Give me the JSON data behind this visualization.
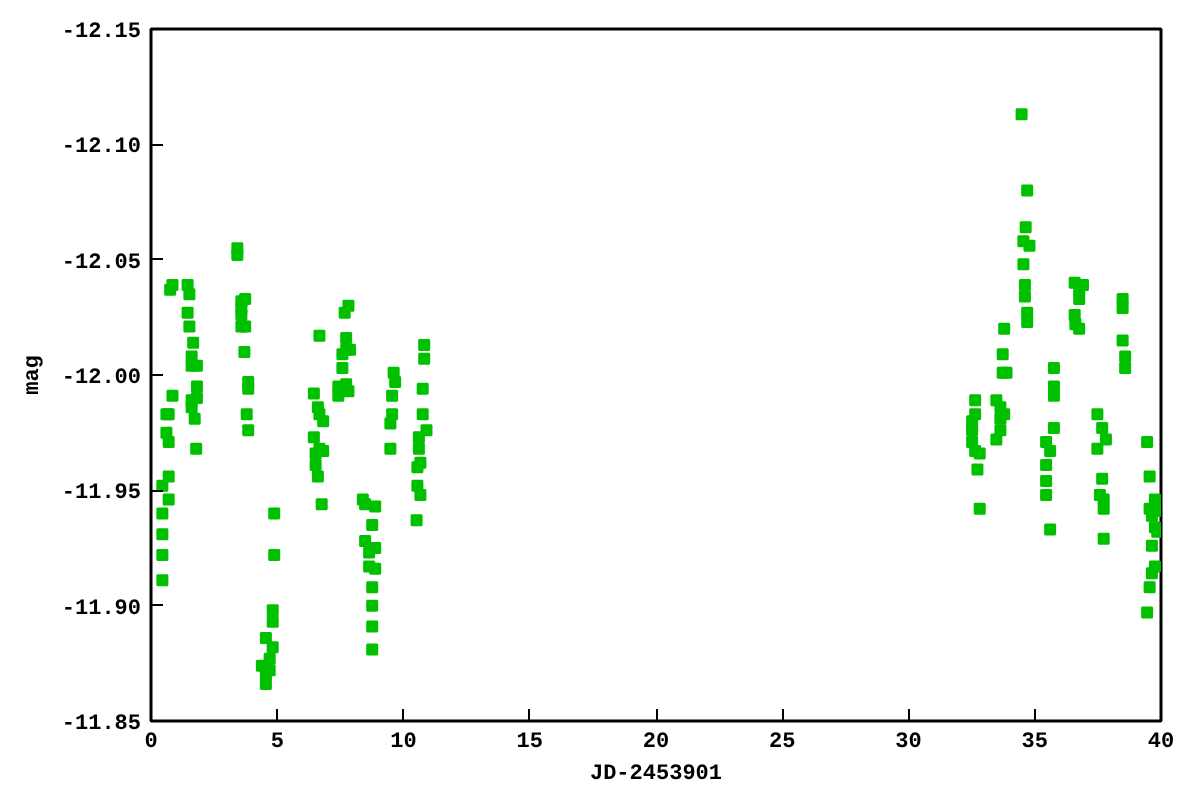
{
  "chart_data": {
    "type": "scatter",
    "xlabel": "JD-2453901",
    "ylabel": "mag",
    "marker": "square",
    "grid": false,
    "xlim": [
      0,
      40
    ],
    "ylim": [
      -11.85,
      -12.15
    ],
    "xticks": [
      0,
      5,
      10,
      15,
      20,
      25,
      30,
      35,
      40
    ],
    "yticks": [
      {
        "value": -12.15,
        "label": "-12.15"
      },
      {
        "value": -12.1,
        "label": "-12.10"
      },
      {
        "value": -12.05,
        "label": "-12.05"
      },
      {
        "value": -12.0,
        "label": "-12.00"
      },
      {
        "value": -11.95,
        "label": "-11.95"
      },
      {
        "value": -11.9,
        "label": "-11.90"
      },
      {
        "value": -11.85,
        "label": "-11.85"
      }
    ],
    "series": [
      {
        "color": "#00c000",
        "x": [
          0.45,
          0.45,
          0.45,
          0.45,
          0.45,
          0.61,
          0.61,
          0.7,
          0.7,
          0.7,
          0.7,
          0.76,
          0.85,
          0.85,
          1.45,
          1.45,
          1.52,
          1.52,
          1.67,
          1.61,
          1.61,
          1.82,
          1.61,
          1.61,
          1.73,
          1.82,
          1.82,
          1.79,
          3.42,
          3.42,
          3.58,
          3.58,
          3.58,
          3.58,
          3.73,
          3.73,
          3.7,
          3.85,
          3.85,
          3.79,
          3.85,
          4.39,
          4.55,
          4.55,
          4.55,
          4.7,
          4.7,
          4.82,
          4.82,
          4.82,
          4.88,
          4.88,
          6.45,
          6.45,
          6.52,
          6.52,
          6.61,
          6.61,
          6.67,
          6.67,
          6.67,
          6.76,
          6.82,
          6.82,
          7.42,
          7.42,
          7.58,
          7.58,
          7.67,
          7.73,
          7.73,
          7.73,
          7.82,
          7.82,
          7.88,
          8.39,
          8.48,
          8.48,
          8.64,
          8.64,
          8.76,
          8.76,
          8.76,
          8.76,
          8.76,
          8.88,
          8.88,
          8.88,
          9.48,
          9.48,
          9.55,
          9.55,
          9.61,
          9.67,
          10.52,
          10.55,
          10.55,
          10.61,
          10.61,
          10.67,
          10.67,
          10.76,
          10.76,
          10.82,
          10.82,
          10.91,
          32.52,
          32.52,
          32.52,
          32.64,
          32.64,
          32.64,
          32.73,
          32.82,
          32.82,
          33.48,
          33.48,
          33.64,
          33.64,
          33.64,
          33.73,
          33.73,
          33.79,
          33.79,
          33.88,
          34.48,
          34.7,
          34.64,
          34.55,
          34.55,
          34.79,
          34.61,
          34.61,
          34.7,
          34.7,
          35.45,
          35.45,
          35.45,
          35.45,
          35.61,
          35.61,
          35.76,
          35.76,
          35.76,
          35.76,
          36.58,
          36.58,
          36.76,
          36.76,
          36.76,
          36.91,
          36.61,
          37.48,
          37.48,
          37.58,
          37.67,
          37.67,
          37.73,
          37.73,
          37.73,
          37.82,
          38.48,
          38.48,
          38.48,
          38.58,
          38.58,
          39.45,
          39.45,
          39.55,
          39.55,
          39.55,
          39.64,
          39.64,
          39.64,
          39.76,
          39.76,
          39.76,
          39.85,
          39.85
        ],
        "values": [
          -11.911,
          -11.922,
          -11.931,
          -11.94,
          -11.952,
          -11.983,
          -11.975,
          -11.971,
          -11.956,
          -11.946,
          -11.983,
          -12.037,
          -12.039,
          -11.991,
          -12.039,
          -12.027,
          -12.035,
          -12.021,
          -12.014,
          -12.008,
          -12.004,
          -12.004,
          -11.989,
          -11.986,
          -11.981,
          -11.995,
          -11.99,
          -11.968,
          -12.055,
          -12.052,
          -12.032,
          -12.029,
          -12.026,
          -12.021,
          -12.033,
          -12.021,
          -12.01,
          -11.997,
          -11.994,
          -11.983,
          -11.976,
          -11.874,
          -11.886,
          -11.87,
          -11.866,
          -11.877,
          -11.872,
          -11.882,
          -11.893,
          -11.898,
          -11.922,
          -11.94,
          -11.992,
          -11.973,
          -11.966,
          -11.961,
          -11.986,
          -11.956,
          -12.017,
          -11.983,
          -11.968,
          -11.944,
          -11.98,
          -11.967,
          -11.995,
          -11.991,
          -12.003,
          -12.009,
          -12.027,
          -12.016,
          -11.996,
          -12.011,
          -12.03,
          -11.993,
          -12.011,
          -11.946,
          -11.944,
          -11.928,
          -11.923,
          -11.917,
          -11.935,
          -11.908,
          -11.9,
          -11.891,
          -11.881,
          -11.943,
          -11.925,
          -11.916,
          -11.968,
          -11.979,
          -11.983,
          -11.991,
          -12.001,
          -11.997,
          -11.937,
          -11.96,
          -11.952,
          -11.973,
          -11.968,
          -11.948,
          -11.962,
          -11.994,
          -11.983,
          -12.013,
          -12.007,
          -11.976,
          -11.98,
          -11.976,
          -11.971,
          -11.989,
          -11.983,
          -11.967,
          -11.959,
          -11.966,
          -11.942,
          -11.989,
          -11.972,
          -11.986,
          -11.981,
          -11.976,
          -12.009,
          -12.001,
          -12.02,
          -11.983,
          -12.001,
          -12.113,
          -12.08,
          -12.064,
          -12.058,
          -12.048,
          -12.056,
          -12.039,
          -12.034,
          -12.027,
          -12.023,
          -11.971,
          -11.961,
          -11.954,
          -11.948,
          -11.967,
          -11.933,
          -11.995,
          -11.991,
          -12.003,
          -11.977,
          -12.04,
          -12.026,
          -12.037,
          -12.033,
          -12.02,
          -12.039,
          -12.022,
          -11.983,
          -11.968,
          -11.948,
          -11.977,
          -11.955,
          -11.946,
          -11.942,
          -11.929,
          -11.972,
          -12.033,
          -12.029,
          -12.015,
          -12.008,
          -12.003,
          -11.971,
          -11.897,
          -11.956,
          -11.942,
          -11.908,
          -11.939,
          -11.926,
          -11.914,
          -11.946,
          -11.934,
          -11.917,
          -11.941,
          -11.932
        ]
      }
    ]
  }
}
